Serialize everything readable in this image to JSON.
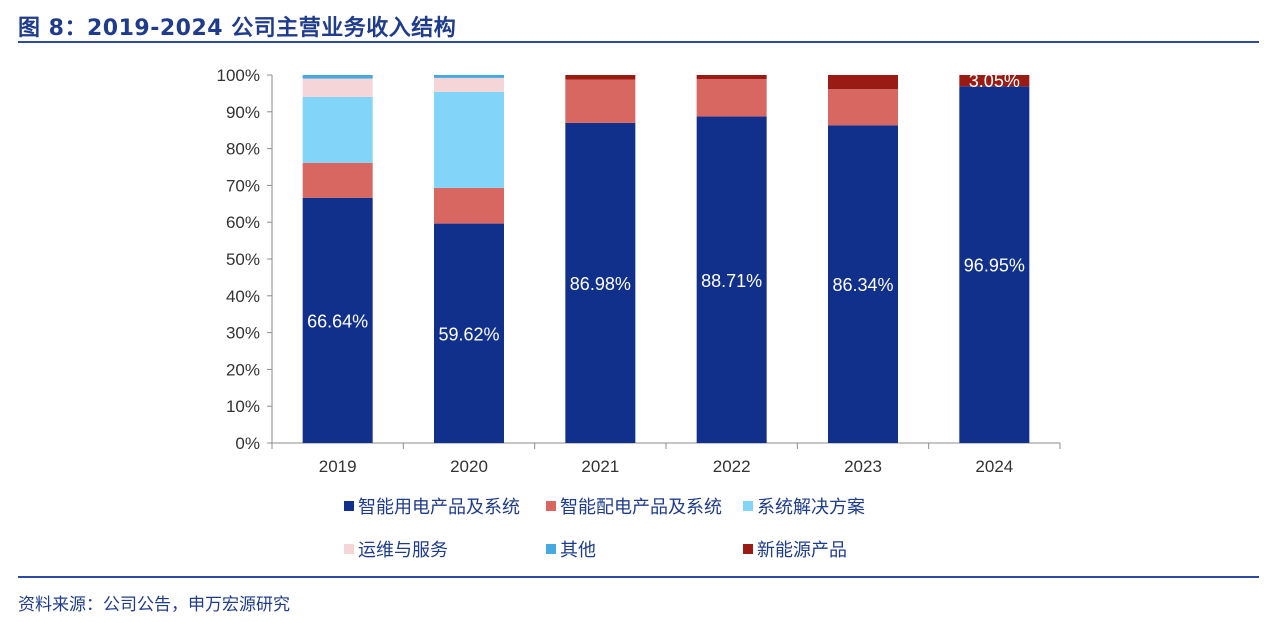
{
  "header": {
    "title": "图 8：2019-2024 公司主营业务收入结构"
  },
  "footer": {
    "source": "资料来源：公司公告，申万宏源研究"
  },
  "chart_data": {
    "type": "bar",
    "stacked": true,
    "title": "2019-2024 公司主营业务收入结构",
    "xlabel": "",
    "ylabel": "",
    "ylim": [
      0,
      100
    ],
    "yticks": [
      "0%",
      "10%",
      "20%",
      "30%",
      "40%",
      "50%",
      "60%",
      "70%",
      "80%",
      "90%",
      "100%"
    ],
    "categories": [
      "2019",
      "2020",
      "2021",
      "2022",
      "2023",
      "2024"
    ],
    "series": [
      {
        "name": "智能用电产品及系统",
        "color": "#10308c",
        "values": [
          66.64,
          59.62,
          86.98,
          88.71,
          86.34,
          96.95
        ],
        "labels": [
          "66.64%",
          "59.62%",
          "86.98%",
          "88.71%",
          "86.34%",
          "96.95%"
        ]
      },
      {
        "name": "智能配电产品及系统",
        "color": "#d96761",
        "values": [
          9.5,
          9.7,
          11.8,
          10.2,
          9.8,
          0
        ]
      },
      {
        "name": "系统解决方案",
        "color": "#82d4f9",
        "values": [
          17.9,
          26.1,
          0,
          0,
          0,
          0
        ]
      },
      {
        "name": "运维与服务",
        "color": "#f6d5d8",
        "values": [
          5.0,
          3.8,
          0,
          0,
          0,
          0
        ]
      },
      {
        "name": "其他",
        "color": "#45a9e2",
        "values": [
          0.96,
          0.78,
          0,
          0,
          0,
          0
        ]
      },
      {
        "name": "新能源产品",
        "color": "#9a1b13",
        "values": [
          0,
          0,
          1.22,
          1.09,
          3.86,
          3.05
        ],
        "labels": [
          "",
          "",
          "",
          "",
          "",
          "3.05%"
        ]
      }
    ],
    "legend": {
      "position": "bottom",
      "columns": 3
    },
    "grid": false
  }
}
